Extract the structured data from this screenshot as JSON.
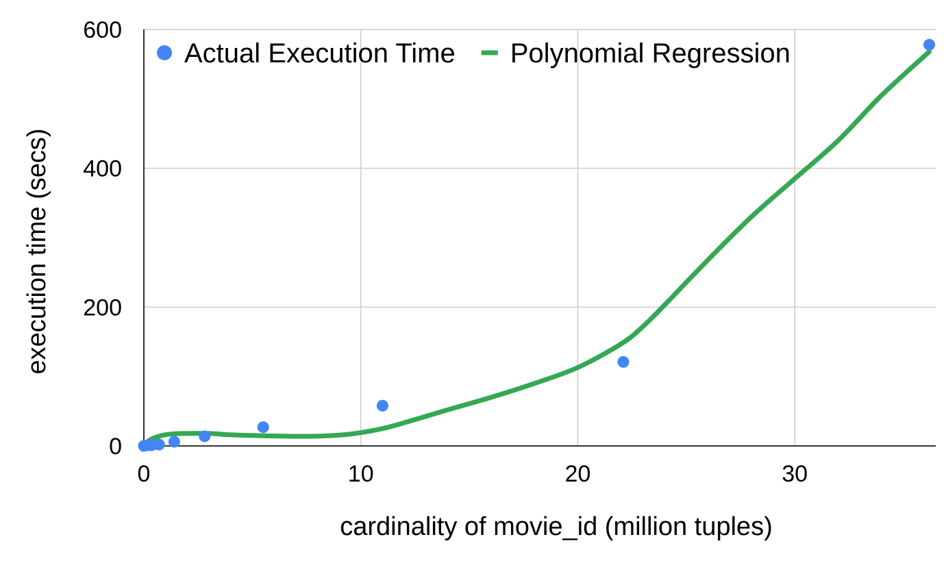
{
  "chart_data": {
    "type": "scatter",
    "title": "",
    "xlabel": "cardinality of movie_id (million tuples)",
    "ylabel": "execution time (secs)",
    "xlim": [
      0,
      36.5
    ],
    "ylim": [
      0,
      600
    ],
    "x_ticks": [
      0,
      10,
      20,
      30
    ],
    "x_tick_labels": [
      "0",
      "10",
      "20",
      "30"
    ],
    "y_ticks": [
      0,
      200,
      400,
      600
    ],
    "y_tick_labels": [
      "0",
      "200",
      "400",
      "600"
    ],
    "grid": true,
    "legend_position": "top",
    "series": [
      {
        "name": "Actual Execution Time",
        "kind": "scatter",
        "color": "#4285f4",
        "points": [
          {
            "x": 0.0,
            "y": 0
          },
          {
            "x": 0.2,
            "y": 1
          },
          {
            "x": 0.35,
            "y": 1
          },
          {
            "x": 0.7,
            "y": 2
          },
          {
            "x": 1.4,
            "y": 6
          },
          {
            "x": 2.8,
            "y": 14
          },
          {
            "x": 5.5,
            "y": 27
          },
          {
            "x": 11.0,
            "y": 58
          },
          {
            "x": 22.1,
            "y": 121
          },
          {
            "x": 36.2,
            "y": 578
          }
        ]
      },
      {
        "name": "Polynomial Regression",
        "kind": "line",
        "color": "#34a853",
        "points": [
          {
            "x": 0.0,
            "y": 2
          },
          {
            "x": 0.3,
            "y": 9
          },
          {
            "x": 0.7,
            "y": 14
          },
          {
            "x": 1.2,
            "y": 17
          },
          {
            "x": 2.0,
            "y": 18
          },
          {
            "x": 3.0,
            "y": 18
          },
          {
            "x": 4.0,
            "y": 16
          },
          {
            "x": 5.0,
            "y": 15
          },
          {
            "x": 6.5,
            "y": 14
          },
          {
            "x": 8.0,
            "y": 14
          },
          {
            "x": 9.5,
            "y": 17
          },
          {
            "x": 11.0,
            "y": 25
          },
          {
            "x": 12.5,
            "y": 38
          },
          {
            "x": 14.0,
            "y": 52
          },
          {
            "x": 16.0,
            "y": 70
          },
          {
            "x": 18.0,
            "y": 90
          },
          {
            "x": 20.0,
            "y": 113
          },
          {
            "x": 22.0,
            "y": 147
          },
          {
            "x": 23.0,
            "y": 172
          },
          {
            "x": 24.0,
            "y": 203
          },
          {
            "x": 26.0,
            "y": 268
          },
          {
            "x": 28.0,
            "y": 330
          },
          {
            "x": 30.0,
            "y": 385
          },
          {
            "x": 32.0,
            "y": 440
          },
          {
            "x": 34.0,
            "y": 505
          },
          {
            "x": 36.2,
            "y": 568
          }
        ]
      }
    ]
  }
}
